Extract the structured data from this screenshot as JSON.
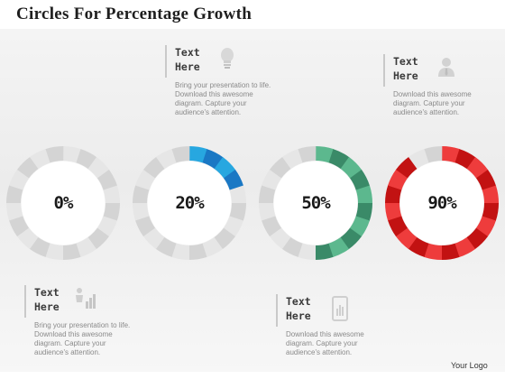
{
  "title": "Circles For Percentage Growth",
  "callouts": [
    {
      "heading": "Text Here",
      "body": "Bring your presentation to life. Download this awesome diagram. Capture your audience's attention.",
      "icon": "bulb-icon"
    },
    {
      "heading": "Text Here",
      "body": "Download this awesome diagram. Capture your audience's attention.",
      "icon": "person-icon"
    },
    {
      "heading": "Text Here",
      "body": "Bring your presentation to life. Download this awesome diagram. Capture your audience's attention.",
      "icon": "growth-icon"
    },
    {
      "heading": "Text Here",
      "body": "Download this awesome diagram. Capture your audience's attention.",
      "icon": "phone-chart-icon"
    }
  ],
  "circles": [
    {
      "label": "0%",
      "value": 0,
      "color_light": "#cccccc",
      "color_dark": "#bcbcbc"
    },
    {
      "label": "20%",
      "value": 20,
      "color_light": "#27a7e0",
      "color_dark": "#1a78c4"
    },
    {
      "label": "50%",
      "value": 50,
      "color_light": "#5cb88e",
      "color_dark": "#3a8a68"
    },
    {
      "label": "90%",
      "value": 90,
      "color_light": "#ee3c3c",
      "color_dark": "#c21212"
    }
  ],
  "track_colors": [
    "#e6e6e6",
    "#d4d4d4"
  ],
  "footer": "Your Logo"
}
